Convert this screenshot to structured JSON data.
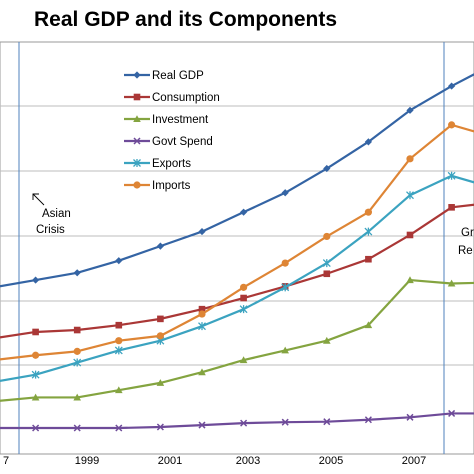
{
  "chart_data": {
    "type": "line",
    "title": "Real GDP and its Components",
    "x": [
      1997,
      1998,
      1999,
      2000,
      2001,
      2002,
      2003,
      2004,
      2005,
      2006,
      2007,
      2008,
      2009
    ],
    "x_tick_labels": [
      "7",
      "1999",
      "2001",
      "2003",
      "2005",
      "2007"
    ],
    "xlabel": "",
    "ylabel": "",
    "ylim": [
      0,
      7.2
    ],
    "grid": true,
    "legend_position": "upper-center",
    "series": [
      {
        "name": "Real GDP",
        "color": "#3464a4",
        "marker": "diamond",
        "values": [
          2.9,
          3.05,
          3.2,
          3.45,
          3.75,
          4.05,
          4.45,
          4.85,
          5.35,
          5.9,
          6.55,
          7.05,
          7.5
        ]
      },
      {
        "name": "Consumption",
        "color": "#aa3736",
        "marker": "square",
        "values": [
          1.85,
          1.98,
          2.02,
          2.12,
          2.25,
          2.45,
          2.68,
          2.92,
          3.18,
          3.48,
          3.98,
          4.55,
          4.65
        ]
      },
      {
        "name": "Investment",
        "color": "#84a440",
        "marker": "triangle",
        "values": [
          0.55,
          0.63,
          0.63,
          0.78,
          0.93,
          1.15,
          1.4,
          1.6,
          1.8,
          2.12,
          3.05,
          2.98,
          3.0
        ]
      },
      {
        "name": "Govt Spend",
        "color": "#6e4b99",
        "marker": "x",
        "values": [
          0.0,
          0.0,
          0.0,
          0.0,
          0.02,
          0.06,
          0.1,
          0.12,
          0.13,
          0.17,
          0.22,
          0.3,
          0.3
        ]
      },
      {
        "name": "Exports",
        "color": "#3ba3c0",
        "marker": "star",
        "values": [
          0.95,
          1.1,
          1.35,
          1.6,
          1.8,
          2.1,
          2.45,
          2.9,
          3.4,
          4.05,
          4.8,
          5.2,
          4.95
        ]
      },
      {
        "name": "Imports",
        "color": "#de8535",
        "marker": "circle",
        "values": [
          1.4,
          1.5,
          1.58,
          1.8,
          1.9,
          2.35,
          2.9,
          3.4,
          3.95,
          4.45,
          5.55,
          6.25,
          6.0
        ]
      }
    ],
    "annotations": [
      {
        "lines": [
          "Asian",
          "Crisis"
        ],
        "x": 1997.6
      },
      {
        "lines": [
          "Gr",
          "Re"
        ],
        "x": 2008.4
      }
    ]
  }
}
